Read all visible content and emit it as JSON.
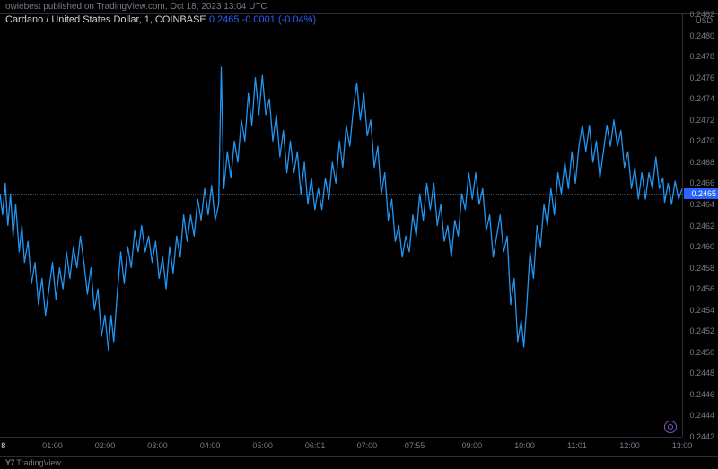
{
  "meta": {
    "publisher_line": "owiebest published on TradingView.com, Oct 18, 2023 13:04 UTC"
  },
  "info": {
    "symbol": "Cardano / United States Dollar, 1, COINBASE",
    "price": "0.2465",
    "change": "-0.0001 (-0.04%)"
  },
  "footer": {
    "brand": "TradingView",
    "logo_glyph": "Y7"
  },
  "y_axis": {
    "unit": "USD",
    "ticks": [
      "0.2482",
      "0.2480",
      "0.2478",
      "0.2476",
      "0.2474",
      "0.2472",
      "0.2470",
      "0.2468",
      "0.2466",
      "0.2464",
      "0.2462",
      "0.2460",
      "0.2458",
      "0.2456",
      "0.2454",
      "0.2452",
      "0.2450",
      "0.2448",
      "0.2446",
      "0.2444",
      "0.2442"
    ],
    "min": 0.2442,
    "max": 0.2482,
    "current": 0.2465,
    "current_label": "0.2465"
  },
  "x_axis": {
    "ticks": [
      {
        "label": "8",
        "pos": 0.005,
        "bold": true
      },
      {
        "label": "01:00",
        "pos": 0.077
      },
      {
        "label": "02:00",
        "pos": 0.154
      },
      {
        "label": "03:00",
        "pos": 0.231
      },
      {
        "label": "04:00",
        "pos": 0.308
      },
      {
        "label": "05:00",
        "pos": 0.385
      },
      {
        "label": "06:01",
        "pos": 0.462
      },
      {
        "label": "07:00",
        "pos": 0.538
      },
      {
        "label": "07:55",
        "pos": 0.608
      },
      {
        "label": "09:00",
        "pos": 0.692
      },
      {
        "label": "10:00",
        "pos": 0.769
      },
      {
        "label": "11:01",
        "pos": 0.846
      },
      {
        "label": "12:00",
        "pos": 0.923
      },
      {
        "label": "13:00",
        "pos": 1.0
      }
    ],
    "min": 0,
    "max": 780
  },
  "chart": {
    "type": "line",
    "line_color": "#2196f3",
    "line_width": 1.3,
    "background": "#000000",
    "grid_color": "#2a2e39",
    "data": [
      [
        0,
        0.2465
      ],
      [
        3,
        0.2463
      ],
      [
        6,
        0.2466
      ],
      [
        9,
        0.2462
      ],
      [
        12,
        0.2465
      ],
      [
        15,
        0.2461
      ],
      [
        18,
        0.2464
      ],
      [
        22,
        0.24595
      ],
      [
        25,
        0.2462
      ],
      [
        28,
        0.24585
      ],
      [
        32,
        0.24605
      ],
      [
        36,
        0.24565
      ],
      [
        40,
        0.24585
      ],
      [
        44,
        0.24545
      ],
      [
        48,
        0.2457
      ],
      [
        52,
        0.24535
      ],
      [
        56,
        0.2456
      ],
      [
        60,
        0.24585
      ],
      [
        64,
        0.2455
      ],
      [
        68,
        0.2458
      ],
      [
        72,
        0.2456
      ],
      [
        76,
        0.24595
      ],
      [
        80,
        0.2457
      ],
      [
        84,
        0.246
      ],
      [
        88,
        0.2458
      ],
      [
        92,
        0.2461
      ],
      [
        96,
        0.24585
      ],
      [
        100,
        0.24555
      ],
      [
        104,
        0.2458
      ],
      [
        108,
        0.2454
      ],
      [
        112,
        0.2456
      ],
      [
        116,
        0.24515
      ],
      [
        120,
        0.24535
      ],
      [
        124,
        0.24502
      ],
      [
        127,
        0.24535
      ],
      [
        130,
        0.2451
      ],
      [
        134,
        0.24555
      ],
      [
        138,
        0.24595
      ],
      [
        142,
        0.24565
      ],
      [
        146,
        0.246
      ],
      [
        150,
        0.2458
      ],
      [
        154,
        0.24615
      ],
      [
        158,
        0.24595
      ],
      [
        162,
        0.2462
      ],
      [
        166,
        0.24595
      ],
      [
        170,
        0.2461
      ],
      [
        174,
        0.24585
      ],
      [
        178,
        0.24605
      ],
      [
        182,
        0.2457
      ],
      [
        186,
        0.2459
      ],
      [
        190,
        0.2456
      ],
      [
        194,
        0.246
      ],
      [
        198,
        0.24575
      ],
      [
        202,
        0.2461
      ],
      [
        206,
        0.2459
      ],
      [
        210,
        0.2463
      ],
      [
        214,
        0.24605
      ],
      [
        218,
        0.2463
      ],
      [
        222,
        0.2461
      ],
      [
        226,
        0.24645
      ],
      [
        230,
        0.24625
      ],
      [
        234,
        0.24655
      ],
      [
        238,
        0.2463
      ],
      [
        242,
        0.24658
      ],
      [
        246,
        0.24625
      ],
      [
        250,
        0.2464
      ],
      [
        253,
        0.2477
      ],
      [
        256,
        0.24655
      ],
      [
        260,
        0.2469
      ],
      [
        264,
        0.24665
      ],
      [
        268,
        0.247
      ],
      [
        272,
        0.2468
      ],
      [
        276,
        0.2472
      ],
      [
        280,
        0.247
      ],
      [
        284,
        0.24745
      ],
      [
        288,
        0.24715
      ],
      [
        292,
        0.2476
      ],
      [
        296,
        0.24725
      ],
      [
        300,
        0.24762
      ],
      [
        304,
        0.24725
      ],
      [
        308,
        0.2474
      ],
      [
        312,
        0.247
      ],
      [
        316,
        0.24725
      ],
      [
        320,
        0.24685
      ],
      [
        324,
        0.2471
      ],
      [
        328,
        0.2467
      ],
      [
        332,
        0.247
      ],
      [
        336,
        0.2467
      ],
      [
        340,
        0.2469
      ],
      [
        344,
        0.2465
      ],
      [
        348,
        0.2468
      ],
      [
        352,
        0.2464
      ],
      [
        356,
        0.24665
      ],
      [
        360,
        0.24635
      ],
      [
        364,
        0.24655
      ],
      [
        368,
        0.24635
      ],
      [
        372,
        0.24665
      ],
      [
        376,
        0.24645
      ],
      [
        380,
        0.2468
      ],
      [
        384,
        0.2466
      ],
      [
        388,
        0.247
      ],
      [
        392,
        0.24675
      ],
      [
        396,
        0.24715
      ],
      [
        400,
        0.24695
      ],
      [
        404,
        0.2473
      ],
      [
        408,
        0.24755
      ],
      [
        412,
        0.2472
      ],
      [
        416,
        0.24745
      ],
      [
        420,
        0.24705
      ],
      [
        424,
        0.2472
      ],
      [
        428,
        0.24675
      ],
      [
        432,
        0.24695
      ],
      [
        436,
        0.2465
      ],
      [
        440,
        0.2467
      ],
      [
        444,
        0.24625
      ],
      [
        448,
        0.24645
      ],
      [
        452,
        0.24605
      ],
      [
        456,
        0.2462
      ],
      [
        460,
        0.2459
      ],
      [
        464,
        0.2461
      ],
      [
        468,
        0.24595
      ],
      [
        472,
        0.2463
      ],
      [
        476,
        0.2461
      ],
      [
        480,
        0.2465
      ],
      [
        484,
        0.24625
      ],
      [
        488,
        0.2466
      ],
      [
        492,
        0.24635
      ],
      [
        496,
        0.2466
      ],
      [
        500,
        0.2462
      ],
      [
        504,
        0.2464
      ],
      [
        508,
        0.24605
      ],
      [
        512,
        0.2462
      ],
      [
        516,
        0.2459
      ],
      [
        520,
        0.24625
      ],
      [
        524,
        0.2461
      ],
      [
        528,
        0.2465
      ],
      [
        532,
        0.24635
      ],
      [
        536,
        0.2467
      ],
      [
        540,
        0.24645
      ],
      [
        544,
        0.2467
      ],
      [
        548,
        0.2464
      ],
      [
        552,
        0.24655
      ],
      [
        556,
        0.24615
      ],
      [
        560,
        0.2463
      ],
      [
        564,
        0.2459
      ],
      [
        568,
        0.2461
      ],
      [
        572,
        0.2463
      ],
      [
        576,
        0.24595
      ],
      [
        580,
        0.2461
      ],
      [
        584,
        0.24545
      ],
      [
        588,
        0.2457
      ],
      [
        592,
        0.2451
      ],
      [
        596,
        0.2453
      ],
      [
        599,
        0.24505
      ],
      [
        602,
        0.2454
      ],
      [
        606,
        0.24595
      ],
      [
        610,
        0.2457
      ],
      [
        614,
        0.2462
      ],
      [
        618,
        0.246
      ],
      [
        622,
        0.2464
      ],
      [
        626,
        0.2462
      ],
      [
        630,
        0.24655
      ],
      [
        634,
        0.2463
      ],
      [
        638,
        0.2467
      ],
      [
        642,
        0.2465
      ],
      [
        646,
        0.2468
      ],
      [
        650,
        0.24655
      ],
      [
        654,
        0.2469
      ],
      [
        658,
        0.2466
      ],
      [
        662,
        0.24695
      ],
      [
        666,
        0.24715
      ],
      [
        670,
        0.2469
      ],
      [
        674,
        0.24715
      ],
      [
        678,
        0.2468
      ],
      [
        682,
        0.247
      ],
      [
        686,
        0.24665
      ],
      [
        690,
        0.2469
      ],
      [
        694,
        0.24715
      ],
      [
        698,
        0.24695
      ],
      [
        702,
        0.2472
      ],
      [
        706,
        0.24695
      ],
      [
        710,
        0.2471
      ],
      [
        714,
        0.24675
      ],
      [
        718,
        0.2469
      ],
      [
        722,
        0.24655
      ],
      [
        726,
        0.24675
      ],
      [
        730,
        0.24645
      ],
      [
        734,
        0.2467
      ],
      [
        738,
        0.24645
      ],
      [
        742,
        0.2467
      ],
      [
        746,
        0.24655
      ],
      [
        750,
        0.24685
      ],
      [
        754,
        0.24655
      ],
      [
        758,
        0.24665
      ],
      [
        760,
        0.24642
      ],
      [
        764,
        0.2466
      ],
      [
        768,
        0.2464
      ],
      [
        772,
        0.24662
      ],
      [
        776,
        0.24645
      ],
      [
        780,
        0.24655
      ]
    ]
  }
}
